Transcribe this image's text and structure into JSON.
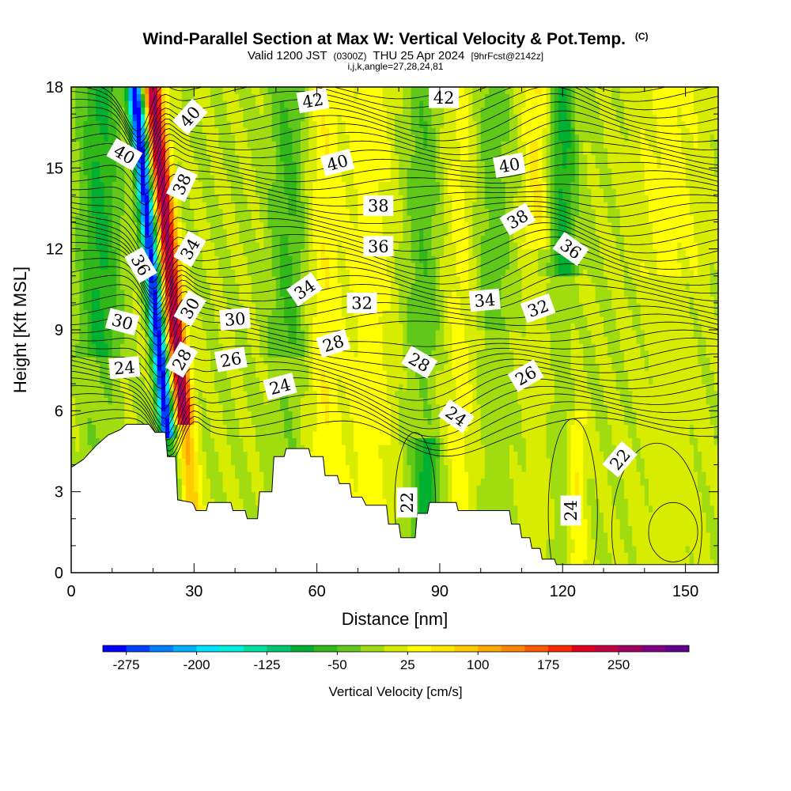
{
  "chart_data": {
    "type": "heatmap",
    "title": "Wind-Parallel Section at Max W: Vertical Velocity & Pot.Temp.",
    "title_mark": "(C)",
    "subtitle": {
      "valid": "Valid 1200 JST",
      "utc": "(0300Z)",
      "date": "THU 25 Apr 2024",
      "fcst": "[9hrFcst@2142z]"
    },
    "subtitle2": "i,j,k,angle=27,28,24,81",
    "xlabel": "Distance [nm]",
    "ylabel": "Height [Kft MSL]",
    "xlim": [
      0,
      158
    ],
    "ylim": [
      0,
      18
    ],
    "x_ticks": [
      "0",
      "30",
      "60",
      "90",
      "120",
      "150"
    ],
    "y_ticks": [
      "0",
      "3",
      "6",
      "9",
      "12",
      "15",
      "18"
    ],
    "colorbar": {
      "title": "Vertical Velocity [cm/s]",
      "labels": [
        "-275",
        "-200",
        "-125",
        "-50",
        "25",
        "100",
        "175",
        "250"
      ],
      "colors": [
        "#0000ff",
        "#0040ff",
        "#0080ff",
        "#00b0ff",
        "#00e0ff",
        "#00f0e0",
        "#00e0a0",
        "#00c870",
        "#00b030",
        "#30b818",
        "#60c818",
        "#a0dc10",
        "#d8ec00",
        "#ffff00",
        "#ffe800",
        "#ffcc00",
        "#ffa800",
        "#ff8400",
        "#ff5a00",
        "#f82800",
        "#e00020",
        "#c00040",
        "#a00060",
        "#800080",
        "#600090"
      ]
    },
    "terrain_kft": [
      [
        0,
        3.9
      ],
      [
        3,
        4.2
      ],
      [
        6,
        4.7
      ],
      [
        9,
        5.1
      ],
      [
        12,
        5.3
      ],
      [
        13.5,
        5.5
      ],
      [
        19,
        5.5
      ],
      [
        20.5,
        5.2
      ],
      [
        23,
        5.2
      ],
      [
        23.5,
        4.3
      ],
      [
        25.5,
        4.3
      ],
      [
        26,
        2.7
      ],
      [
        29.5,
        2.6
      ],
      [
        30,
        2.5
      ],
      [
        30.5,
        2.3
      ],
      [
        33,
        2.3
      ],
      [
        33.5,
        2.6
      ],
      [
        39,
        2.6
      ],
      [
        39.5,
        2.3
      ],
      [
        42.5,
        2.3
      ],
      [
        43,
        2.0
      ],
      [
        45.5,
        2.0
      ],
      [
        46,
        3.0
      ],
      [
        49,
        3.0
      ],
      [
        49.5,
        4.3
      ],
      [
        52,
        4.3
      ],
      [
        52.5,
        4.6
      ],
      [
        58,
        4.6
      ],
      [
        58.5,
        4.3
      ],
      [
        61.5,
        4.3
      ],
      [
        62,
        3.6
      ],
      [
        65,
        3.6
      ],
      [
        65.5,
        3.3
      ],
      [
        68,
        3.3
      ],
      [
        68.5,
        2.8
      ],
      [
        71,
        2.8
      ],
      [
        72,
        2.5
      ],
      [
        77,
        2.5
      ],
      [
        77.5,
        1.8
      ],
      [
        80,
        1.8
      ],
      [
        80.5,
        1.3
      ],
      [
        84,
        1.3
      ],
      [
        84.5,
        2.2
      ],
      [
        87,
        2.2
      ],
      [
        87.5,
        2.6
      ],
      [
        94,
        2.6
      ],
      [
        94.5,
        2.3
      ],
      [
        107,
        2.3
      ],
      [
        107.5,
        1.8
      ],
      [
        109.5,
        1.8
      ],
      [
        110,
        1.3
      ],
      [
        112,
        1.3
      ],
      [
        112.5,
        0.9
      ],
      [
        114.5,
        0.9
      ],
      [
        115,
        0.5
      ],
      [
        118,
        0.5
      ],
      [
        118.5,
        0.3
      ],
      [
        158,
        0.3
      ]
    ],
    "contour_labels": [
      {
        "text": "40",
        "x": 29,
        "y": 16.9,
        "rot": -48
      },
      {
        "text": "40",
        "x": 13,
        "y": 15.5,
        "rot": 30
      },
      {
        "text": "38",
        "x": 27,
        "y": 14.4,
        "rot": -65
      },
      {
        "text": "34",
        "x": 29,
        "y": 12.0,
        "rot": -60
      },
      {
        "text": "36",
        "x": 17,
        "y": 11.4,
        "rot": 60
      },
      {
        "text": "30",
        "x": 29,
        "y": 9.8,
        "rot": -60
      },
      {
        "text": "30",
        "x": 12.5,
        "y": 9.3,
        "rot": 15
      },
      {
        "text": "28",
        "x": 27,
        "y": 7.9,
        "rot": -60
      },
      {
        "text": "24",
        "x": 13,
        "y": 7.6,
        "rot": -5
      },
      {
        "text": "30",
        "x": 40,
        "y": 9.4,
        "rot": -5
      },
      {
        "text": "26",
        "x": 39,
        "y": 7.9,
        "rot": -10
      },
      {
        "text": "24",
        "x": 51,
        "y": 6.9,
        "rot": -15
      },
      {
        "text": "34",
        "x": 57,
        "y": 10.5,
        "rot": -35
      },
      {
        "text": "28",
        "x": 64,
        "y": 8.5,
        "rot": -18
      },
      {
        "text": "32",
        "x": 71,
        "y": 10.0,
        "rot": 0
      },
      {
        "text": "36",
        "x": 75,
        "y": 12.1,
        "rot": 0
      },
      {
        "text": "38",
        "x": 75,
        "y": 13.6,
        "rot": 0
      },
      {
        "text": "40",
        "x": 65,
        "y": 15.2,
        "rot": -15
      },
      {
        "text": "42",
        "x": 59,
        "y": 17.5,
        "rot": -10
      },
      {
        "text": "42",
        "x": 91,
        "y": 17.6,
        "rot": 0
      },
      {
        "text": "40",
        "x": 107,
        "y": 15.1,
        "rot": -10
      },
      {
        "text": "38",
        "x": 109,
        "y": 13.1,
        "rot": -30
      },
      {
        "text": "36",
        "x": 122,
        "y": 12.0,
        "rot": 35
      },
      {
        "text": "34",
        "x": 101,
        "y": 10.1,
        "rot": -5
      },
      {
        "text": "32",
        "x": 114,
        "y": 9.8,
        "rot": -20
      },
      {
        "text": "28",
        "x": 85,
        "y": 7.8,
        "rot": 30
      },
      {
        "text": "26",
        "x": 111,
        "y": 7.3,
        "rot": -30
      },
      {
        "text": "24",
        "x": 94,
        "y": 5.8,
        "rot": 35
      },
      {
        "text": "22",
        "x": 82,
        "y": 2.6,
        "rot": -90
      },
      {
        "text": "24",
        "x": 122,
        "y": 2.3,
        "rot": -90
      },
      {
        "text": "22",
        "x": 134,
        "y": 4.2,
        "rot": -50
      }
    ]
  }
}
